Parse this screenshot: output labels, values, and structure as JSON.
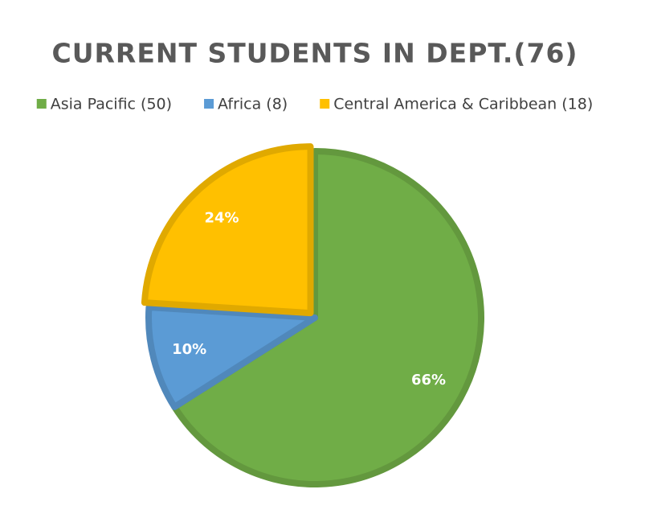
{
  "chart_data": {
    "type": "pie",
    "title": "CURRENT STUDENTS IN DEPT.(76)",
    "categories": [
      "Asia Pacific (50)",
      "Africa (8)",
      "Central America & Caribbean (18)"
    ],
    "values": [
      66,
      10,
      24
    ],
    "value_labels": [
      "66%",
      "10%",
      "24%"
    ],
    "colors": [
      "#70ad47",
      "#5b9bd5",
      "#ffc000"
    ],
    "legend": "top"
  }
}
